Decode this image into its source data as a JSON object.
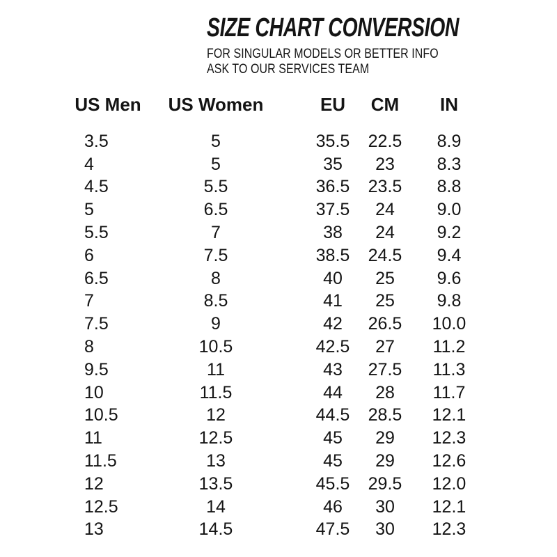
{
  "colors": {
    "background": "#ffffff",
    "text": "#141414"
  },
  "header": {
    "title": "SIZE CHART CONVERSION",
    "subtitle_line1": "FOR SINGULAR MODELS OR BETTER INFO",
    "subtitle_line2": "ASK TO OUR SERVICES TEAM"
  },
  "chart_data": {
    "type": "table",
    "title": "SIZE CHART CONVERSION",
    "columns": [
      "US Men",
      "US Women",
      "EU",
      "CM",
      "IN"
    ],
    "rows": [
      [
        "3.5",
        "5",
        "35.5",
        "22.5",
        "8.9"
      ],
      [
        "4",
        "5",
        "35",
        "23",
        "8.3"
      ],
      [
        "4.5",
        "5.5",
        "36.5",
        "23.5",
        "8.8"
      ],
      [
        "5",
        "6.5",
        "37.5",
        "24",
        "9.0"
      ],
      [
        "5.5",
        "7",
        "38",
        "24",
        "9.2"
      ],
      [
        "6",
        "7.5",
        "38.5",
        "24.5",
        "9.4"
      ],
      [
        "6.5",
        "8",
        "40",
        "25",
        "9.6"
      ],
      [
        "7",
        "8.5",
        "41",
        "25",
        "9.8"
      ],
      [
        "7.5",
        "9",
        "42",
        "26.5",
        "10.0"
      ],
      [
        "8",
        "10.5",
        "42.5",
        "27",
        "11.2"
      ],
      [
        "9.5",
        "11",
        "43",
        "27.5",
        "11.3"
      ],
      [
        "10",
        "11.5",
        "44",
        "28",
        "11.7"
      ],
      [
        "10.5",
        "12",
        "44.5",
        "28.5",
        "12.1"
      ],
      [
        "11",
        "12.5",
        "45",
        "29",
        "12.3"
      ],
      [
        "11.5",
        "13",
        "45",
        "29",
        "12.6"
      ],
      [
        "12",
        "13.5",
        "45.5",
        "29.5",
        "12.0"
      ],
      [
        "12.5",
        "14",
        "46",
        "30",
        "12.1"
      ],
      [
        "13",
        "14.5",
        "47.5",
        "30",
        "12.3"
      ]
    ]
  }
}
